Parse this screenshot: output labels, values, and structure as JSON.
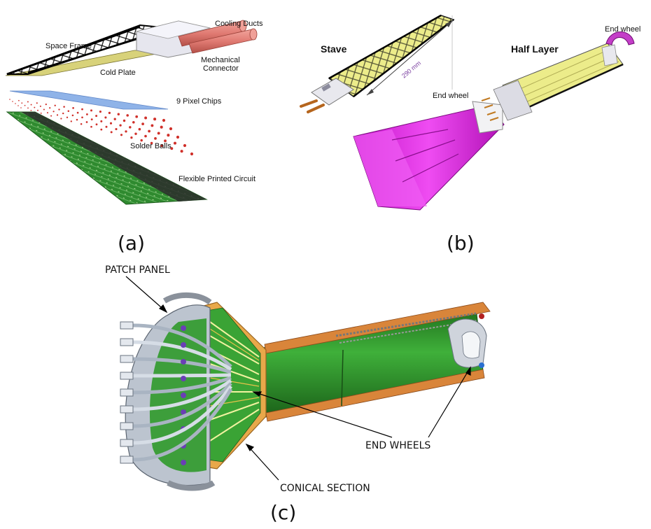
{
  "panel_a": {
    "labels": {
      "space_frame": "Space Frame",
      "cooling_ducts": "Cooling Ducts",
      "mechanical_connector_1": "Mechanical",
      "mechanical_connector_2": "Connector",
      "cold_plate": "Cold Plate",
      "pixel_chips": "9 Pixel Chips",
      "solder_balls": "Solder Balls",
      "flex_circuit": "Flexible Printed Circuit"
    },
    "caption": "(a)"
  },
  "panel_b": {
    "labels": {
      "stave": "Stave",
      "length": "290 mm",
      "half_layer": "Half Layer",
      "end_wheel_top": "End wheel",
      "end_wheel_mid": "End wheel"
    },
    "caption": "(b)"
  },
  "panel_c": {
    "labels": {
      "patch_panel": "PATCH PANEL",
      "end_wheels": "END WHEELS",
      "conical_section": "CONICAL SECTION"
    },
    "caption": "(c)"
  },
  "colors": {
    "cold_plate": "#d8d27a",
    "pixel_chips": "#8fb3e8",
    "solder": "#d0302a",
    "flex": "#2f8a2f",
    "magenta": "#e22ee6",
    "stave_yellow": "#ecec8a",
    "cooling": "#e07a72",
    "cone_orange": "#e8a84a",
    "detector_green": "#3aa335"
  }
}
